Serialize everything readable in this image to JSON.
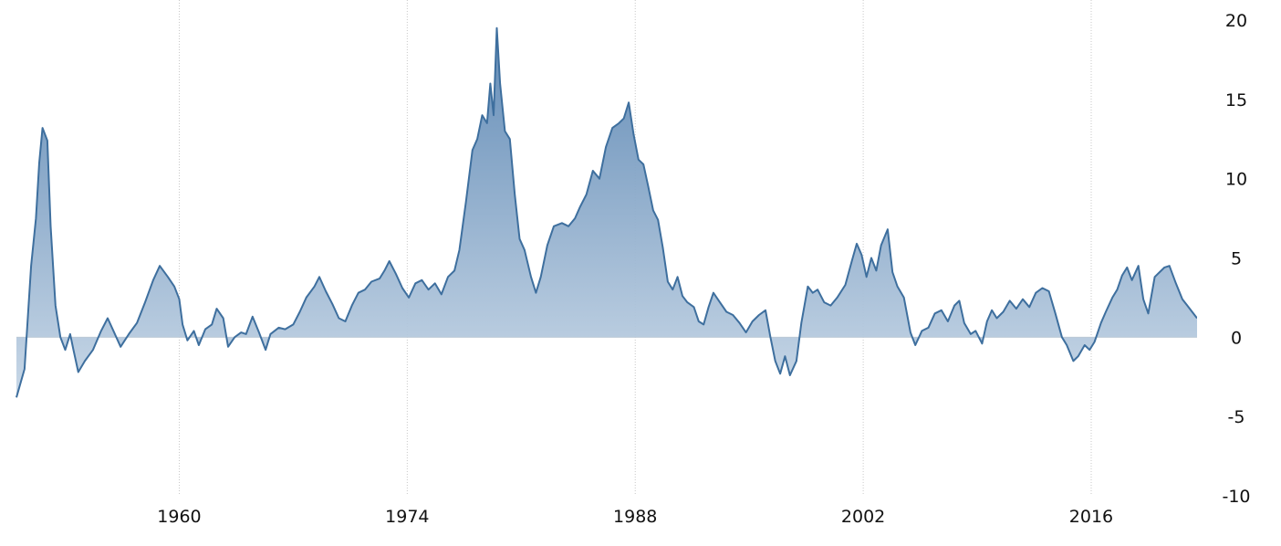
{
  "chart_data": {
    "type": "area",
    "title": "",
    "xlabel": "",
    "ylabel": "",
    "xlim": [
      1950,
      2022.5
    ],
    "ylim": [
      -10,
      20
    ],
    "grid": true,
    "x_ticks": [
      1960,
      1974,
      1988,
      2002,
      2016
    ],
    "x_tick_labels": [
      "1960",
      "1974",
      "1988",
      "2002",
      "2016"
    ],
    "y_ticks": [
      20,
      15,
      10,
      5,
      0,
      -5,
      -10
    ],
    "y_tick_labels": [
      "20",
      "15",
      "10",
      "5",
      "0",
      "-5",
      "-10"
    ],
    "colors": {
      "line": "#3e6f9e",
      "fill_top": "#5b86b3",
      "fill_bottom": "#c6d6e6",
      "grid": "#c8c8c8",
      "zero_line": "#bcc9d6"
    },
    "series": [
      {
        "values": [
          [
            1950.0,
            -3.8
          ],
          [
            1950.5,
            -2.0
          ],
          [
            1950.9,
            4.5
          ],
          [
            1951.2,
            7.5
          ],
          [
            1951.4,
            11.0
          ],
          [
            1951.6,
            13.2
          ],
          [
            1951.9,
            12.4
          ],
          [
            1952.1,
            7.0
          ],
          [
            1952.4,
            2.0
          ],
          [
            1952.7,
            0.0
          ],
          [
            1953.0,
            -0.8
          ],
          [
            1953.3,
            0.2
          ],
          [
            1953.5,
            -0.8
          ],
          [
            1953.8,
            -2.2
          ],
          [
            1954.2,
            -1.5
          ],
          [
            1954.7,
            -0.8
          ],
          [
            1955.2,
            0.4
          ],
          [
            1955.6,
            1.2
          ],
          [
            1956.0,
            0.3
          ],
          [
            1956.4,
            -0.6
          ],
          [
            1956.9,
            0.2
          ],
          [
            1957.4,
            0.9
          ],
          [
            1957.9,
            2.2
          ],
          [
            1958.4,
            3.6
          ],
          [
            1958.8,
            4.5
          ],
          [
            1959.3,
            3.8
          ],
          [
            1959.7,
            3.2
          ],
          [
            1960.0,
            2.4
          ],
          [
            1960.2,
            0.8
          ],
          [
            1960.5,
            -0.2
          ],
          [
            1960.9,
            0.4
          ],
          [
            1961.2,
            -0.5
          ],
          [
            1961.6,
            0.5
          ],
          [
            1962.0,
            0.8
          ],
          [
            1962.3,
            1.8
          ],
          [
            1962.7,
            1.2
          ],
          [
            1963.0,
            -0.6
          ],
          [
            1963.4,
            0.0
          ],
          [
            1963.8,
            0.3
          ],
          [
            1964.1,
            0.2
          ],
          [
            1964.5,
            1.3
          ],
          [
            1964.9,
            0.3
          ],
          [
            1965.3,
            -0.8
          ],
          [
            1965.6,
            0.2
          ],
          [
            1966.1,
            0.6
          ],
          [
            1966.5,
            0.5
          ],
          [
            1967.0,
            0.8
          ],
          [
            1967.4,
            1.6
          ],
          [
            1967.8,
            2.5
          ],
          [
            1968.3,
            3.2
          ],
          [
            1968.6,
            3.8
          ],
          [
            1969.0,
            2.9
          ],
          [
            1969.4,
            2.1
          ],
          [
            1969.8,
            1.2
          ],
          [
            1970.2,
            1.0
          ],
          [
            1970.6,
            2.0
          ],
          [
            1971.0,
            2.8
          ],
          [
            1971.4,
            3.0
          ],
          [
            1971.8,
            3.5
          ],
          [
            1972.3,
            3.7
          ],
          [
            1972.6,
            4.2
          ],
          [
            1972.9,
            4.8
          ],
          [
            1973.3,
            4.0
          ],
          [
            1973.7,
            3.1
          ],
          [
            1974.1,
            2.5
          ],
          [
            1974.5,
            3.4
          ],
          [
            1974.9,
            3.6
          ],
          [
            1975.3,
            3.0
          ],
          [
            1975.7,
            3.4
          ],
          [
            1976.1,
            2.7
          ],
          [
            1976.5,
            3.8
          ],
          [
            1976.9,
            4.2
          ],
          [
            1977.2,
            5.5
          ],
          [
            1977.6,
            8.5
          ],
          [
            1978.0,
            11.8
          ],
          [
            1978.3,
            12.5
          ],
          [
            1978.6,
            14.0
          ],
          [
            1978.9,
            13.5
          ],
          [
            1979.1,
            16.0
          ],
          [
            1979.3,
            14.0
          ],
          [
            1979.5,
            19.5
          ],
          [
            1979.7,
            16.0
          ],
          [
            1980.0,
            13.0
          ],
          [
            1980.3,
            12.5
          ],
          [
            1980.6,
            9.0
          ],
          [
            1980.9,
            6.2
          ],
          [
            1981.2,
            5.5
          ],
          [
            1981.6,
            3.8
          ],
          [
            1981.9,
            2.8
          ],
          [
            1982.2,
            3.8
          ],
          [
            1982.6,
            5.8
          ],
          [
            1983.0,
            7.0
          ],
          [
            1983.5,
            7.2
          ],
          [
            1983.9,
            7.0
          ],
          [
            1984.3,
            7.5
          ],
          [
            1984.6,
            8.2
          ],
          [
            1985.0,
            9.0
          ],
          [
            1985.4,
            10.5
          ],
          [
            1985.8,
            10.0
          ],
          [
            1986.2,
            12.0
          ],
          [
            1986.6,
            13.2
          ],
          [
            1987.0,
            13.5
          ],
          [
            1987.3,
            13.8
          ],
          [
            1987.6,
            14.8
          ],
          [
            1987.9,
            12.8
          ],
          [
            1988.2,
            11.2
          ],
          [
            1988.5,
            10.9
          ],
          [
            1988.8,
            9.5
          ],
          [
            1989.1,
            8.0
          ],
          [
            1989.4,
            7.4
          ],
          [
            1989.7,
            5.6
          ],
          [
            1990.0,
            3.5
          ],
          [
            1990.3,
            3.0
          ],
          [
            1990.6,
            3.8
          ],
          [
            1990.9,
            2.6
          ],
          [
            1991.2,
            2.2
          ],
          [
            1991.6,
            1.9
          ],
          [
            1991.9,
            1.0
          ],
          [
            1992.2,
            0.8
          ],
          [
            1992.5,
            1.9
          ],
          [
            1992.8,
            2.8
          ],
          [
            1993.2,
            2.2
          ],
          [
            1993.6,
            1.6
          ],
          [
            1994.0,
            1.4
          ],
          [
            1994.4,
            0.9
          ],
          [
            1994.8,
            0.3
          ],
          [
            1995.2,
            1.0
          ],
          [
            1995.6,
            1.4
          ],
          [
            1996.0,
            1.7
          ],
          [
            1996.3,
            0.0
          ],
          [
            1996.6,
            -1.5
          ],
          [
            1996.9,
            -2.3
          ],
          [
            1997.2,
            -1.2
          ],
          [
            1997.5,
            -2.4
          ],
          [
            1997.9,
            -1.5
          ],
          [
            1998.2,
            0.9
          ],
          [
            1998.6,
            3.2
          ],
          [
            1998.9,
            2.8
          ],
          [
            1999.2,
            3.0
          ],
          [
            1999.6,
            2.2
          ],
          [
            2000.0,
            2.0
          ],
          [
            2000.4,
            2.5
          ],
          [
            2000.9,
            3.3
          ],
          [
            2001.3,
            4.8
          ],
          [
            2001.6,
            5.9
          ],
          [
            2001.9,
            5.2
          ],
          [
            2002.2,
            3.8
          ],
          [
            2002.5,
            5.0
          ],
          [
            2002.8,
            4.2
          ],
          [
            2003.1,
            5.8
          ],
          [
            2003.5,
            6.8
          ],
          [
            2003.8,
            4.1
          ],
          [
            2004.1,
            3.2
          ],
          [
            2004.5,
            2.5
          ],
          [
            2004.9,
            0.3
          ],
          [
            2005.2,
            -0.5
          ],
          [
            2005.6,
            0.4
          ],
          [
            2006.0,
            0.6
          ],
          [
            2006.4,
            1.5
          ],
          [
            2006.8,
            1.7
          ],
          [
            2007.2,
            1.0
          ],
          [
            2007.6,
            2.0
          ],
          [
            2007.9,
            2.3
          ],
          [
            2008.2,
            0.9
          ],
          [
            2008.6,
            0.2
          ],
          [
            2008.9,
            0.4
          ],
          [
            2009.3,
            -0.4
          ],
          [
            2009.6,
            1.0
          ],
          [
            2009.9,
            1.7
          ],
          [
            2010.2,
            1.2
          ],
          [
            2010.6,
            1.6
          ],
          [
            2011.0,
            2.3
          ],
          [
            2011.4,
            1.8
          ],
          [
            2011.8,
            2.4
          ],
          [
            2012.2,
            1.9
          ],
          [
            2012.6,
            2.8
          ],
          [
            2013.0,
            3.1
          ],
          [
            2013.4,
            2.9
          ],
          [
            2013.8,
            1.5
          ],
          [
            2014.2,
            0.0
          ],
          [
            2014.5,
            -0.5
          ],
          [
            2014.9,
            -1.5
          ],
          [
            2015.2,
            -1.2
          ],
          [
            2015.6,
            -0.5
          ],
          [
            2015.9,
            -0.8
          ],
          [
            2016.2,
            -0.3
          ],
          [
            2016.6,
            0.9
          ],
          [
            2016.9,
            1.6
          ],
          [
            2017.3,
            2.5
          ],
          [
            2017.6,
            3.0
          ],
          [
            2017.9,
            3.9
          ],
          [
            2018.2,
            4.4
          ],
          [
            2018.5,
            3.6
          ],
          [
            2018.9,
            4.5
          ],
          [
            2019.2,
            2.4
          ],
          [
            2019.5,
            1.5
          ],
          [
            2019.9,
            3.8
          ],
          [
            2020.2,
            4.1
          ],
          [
            2020.5,
            4.4
          ],
          [
            2020.8,
            4.5
          ],
          [
            2021.2,
            3.4
          ],
          [
            2021.6,
            2.4
          ],
          [
            2021.9,
            2.0
          ],
          [
            2022.2,
            1.6
          ],
          [
            2022.5,
            1.2
          ]
        ]
      }
    ]
  }
}
